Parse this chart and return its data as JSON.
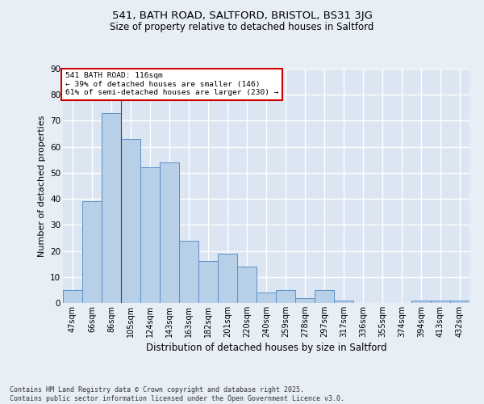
{
  "title1": "541, BATH ROAD, SALTFORD, BRISTOL, BS31 3JG",
  "title2": "Size of property relative to detached houses in Saltford",
  "xlabel": "Distribution of detached houses by size in Saltford",
  "ylabel": "Number of detached properties",
  "categories": [
    "47sqm",
    "66sqm",
    "86sqm",
    "105sqm",
    "124sqm",
    "143sqm",
    "163sqm",
    "182sqm",
    "201sqm",
    "220sqm",
    "240sqm",
    "259sqm",
    "278sqm",
    "297sqm",
    "317sqm",
    "336sqm",
    "355sqm",
    "374sqm",
    "394sqm",
    "413sqm",
    "432sqm"
  ],
  "values": [
    5,
    39,
    73,
    63,
    52,
    54,
    24,
    16,
    19,
    14,
    4,
    5,
    2,
    5,
    1,
    0,
    0,
    0,
    1,
    1,
    1
  ],
  "bar_color": "#b8cfe8",
  "bar_edge_color": "#5b8fc9",
  "annotation_line1": "541 BATH ROAD: 116sqm",
  "annotation_line2": "← 39% of detached houses are smaller (146)",
  "annotation_line3": "61% of semi-detached houses are larger (230) →",
  "annotation_box_color": "#ffffff",
  "annotation_box_edge_color": "#cc0000",
  "vline_x_index": 2.5,
  "bg_color": "#e8eef6",
  "plot_bg_color": "#dce6f2",
  "grid_color": "#ffffff",
  "footer_text": "Contains HM Land Registry data © Crown copyright and database right 2025.\nContains public sector information licensed under the Open Government Licence v3.0.",
  "ylim": [
    0,
    90
  ],
  "yticks": [
    0,
    10,
    20,
    30,
    40,
    50,
    60,
    70,
    80,
    90
  ]
}
